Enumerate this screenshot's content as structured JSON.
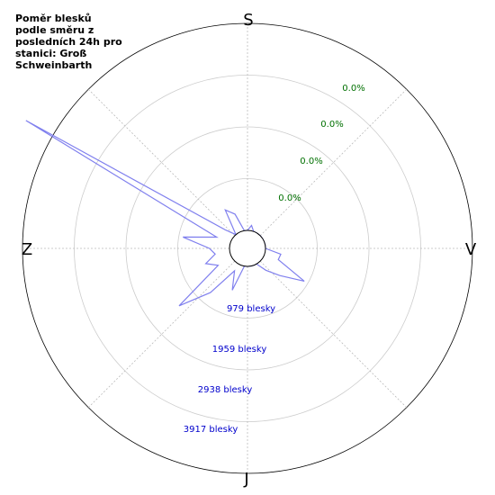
{
  "chart_data": {
    "type": "polar-area",
    "title": "Poměr blesků podle směru z posledních 24h pro stanici: Groß Schweinbarth",
    "directions": {
      "top": "S",
      "right": "V",
      "bottom": "J",
      "left": "Z"
    },
    "percent_labels": [
      "0.0%",
      "0.0%",
      "0.0%",
      "0.0%"
    ],
    "count_labels": [
      "979 blesky",
      "1959 blesky",
      "2938 blesky",
      "3917 blesky"
    ],
    "ring_values": [
      979,
      1959,
      2938,
      3917
    ],
    "colors": {
      "series": "#8080ee",
      "percent": "#007000",
      "counts": "#0000cc"
    },
    "series": [
      {
        "angle": 0,
        "value": 0
      },
      {
        "angle": 10,
        "value": 100
      },
      {
        "angle": 20,
        "value": 0
      },
      {
        "angle": 30,
        "value": 0
      },
      {
        "angle": 40,
        "value": 0
      },
      {
        "angle": 50,
        "value": 0
      },
      {
        "angle": 60,
        "value": 0
      },
      {
        "angle": 70,
        "value": 0
      },
      {
        "angle": 80,
        "value": 0
      },
      {
        "angle": 90,
        "value": 0
      },
      {
        "angle": 100,
        "value": 300
      },
      {
        "angle": 110,
        "value": 280
      },
      {
        "angle": 120,
        "value": 900
      },
      {
        "angle": 130,
        "value": 460
      },
      {
        "angle": 140,
        "value": 200
      },
      {
        "angle": 150,
        "value": 0
      },
      {
        "angle": 160,
        "value": 0
      },
      {
        "angle": 170,
        "value": 0
      },
      {
        "angle": 180,
        "value": 0
      },
      {
        "angle": 190,
        "value": 0
      },
      {
        "angle": 200,
        "value": 500
      },
      {
        "angle": 210,
        "value": 150
      },
      {
        "angle": 220,
        "value": 750
      },
      {
        "angle": 230,
        "value": 1350
      },
      {
        "angle": 240,
        "value": 300
      },
      {
        "angle": 250,
        "value": 500
      },
      {
        "angle": 260,
        "value": 280
      },
      {
        "angle": 270,
        "value": 380
      },
      {
        "angle": 280,
        "value": 900
      },
      {
        "angle": 290,
        "value": 280
      },
      {
        "angle": 300,
        "value": 4500
      },
      {
        "angle": 310,
        "value": 200
      },
      {
        "angle": 320,
        "value": 0
      },
      {
        "angle": 330,
        "value": 500
      },
      {
        "angle": 340,
        "value": 350
      },
      {
        "angle": 350,
        "value": 0
      }
    ],
    "grid": true,
    "legend": "none"
  }
}
